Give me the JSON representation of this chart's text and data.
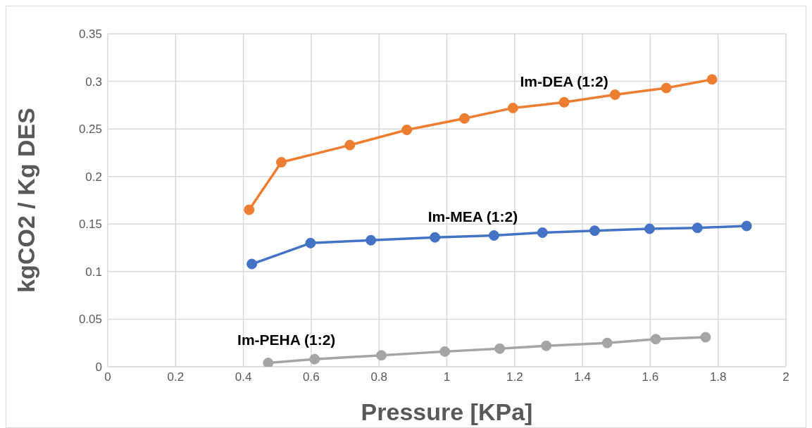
{
  "chart_data": {
    "type": "line",
    "xlabel": "Pressure [KPa]",
    "ylabel": "kgCO2 / Kg DES",
    "xlim": [
      0,
      2
    ],
    "xticks": [
      0,
      0.2,
      0.4,
      0.6,
      0.8,
      1,
      1.2,
      1.4,
      1.6,
      1.8,
      2
    ],
    "ylim": [
      0,
      0.35
    ],
    "yticks": [
      0,
      0.05,
      0.1,
      0.15,
      0.2,
      0.25,
      0.3,
      0.35
    ],
    "grid": true,
    "marker": "circle",
    "line_style": "solid",
    "series": [
      {
        "name": "Im-DEA (1:2)",
        "color": "#ed7d31",
        "x": [
          0.417,
          0.512,
          0.714,
          0.882,
          1.052,
          1.195,
          1.346,
          1.496,
          1.647,
          1.782
        ],
        "values": [
          0.165,
          0.215,
          0.233,
          0.249,
          0.261,
          0.272,
          0.278,
          0.286,
          0.293,
          0.302
        ]
      },
      {
        "name": "Im-MEA (1:2)",
        "color": "#4472c4",
        "x": [
          0.425,
          0.598,
          0.776,
          0.965,
          1.139,
          1.282,
          1.436,
          1.598,
          1.739,
          1.884
        ],
        "values": [
          0.108,
          0.13,
          0.133,
          0.136,
          0.138,
          0.141,
          0.143,
          0.145,
          0.146,
          0.148
        ]
      },
      {
        "name": "Im-PEHA (1:2)",
        "color": "#a5a5a5",
        "x": [
          0.473,
          0.61,
          0.807,
          0.994,
          1.156,
          1.293,
          1.473,
          1.616,
          1.763
        ],
        "values": [
          0.004,
          0.008,
          0.012,
          0.016,
          0.019,
          0.022,
          0.025,
          0.029,
          0.031
        ]
      }
    ]
  }
}
